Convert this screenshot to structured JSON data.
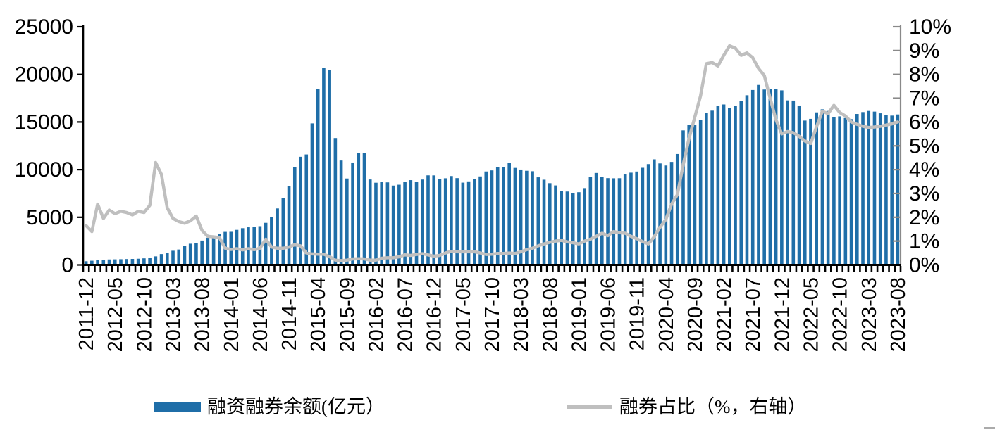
{
  "colors": {
    "bar": "#1F6EA8",
    "line": "#BFBFBF",
    "axis_left": "#000000",
    "axis_right": "#898989",
    "text": "#000000",
    "corner_mark": "#ABABAB"
  },
  "legend": {
    "bar_label": "融资融券余额(亿元）",
    "line_label": "融券占比（%，右轴）"
  },
  "chart_data": {
    "type": "bar",
    "title": "",
    "xlabel": "",
    "ylabel_left": "",
    "ylabel_right": "",
    "legend_position": "bottom",
    "grid": false,
    "left_axis": {
      "min": 0,
      "max": 25000,
      "tick_interval": 5000,
      "tick_labels": [
        "0",
        "5000",
        "10000",
        "15000",
        "20000",
        "25000"
      ]
    },
    "right_axis": {
      "min": 0,
      "max": 10,
      "tick_interval": 1,
      "tick_labels": [
        "0%",
        "1%",
        "2%",
        "3%",
        "4%",
        "5%",
        "6%",
        "7%",
        "8%",
        "9%",
        "10%"
      ]
    },
    "x_tick_labels": [
      "2011-12",
      "2012-05",
      "2012-10",
      "2013-03",
      "2013-08",
      "2014-01",
      "2014-06",
      "2014-11",
      "2015-04",
      "2015-09",
      "2016-02",
      "2016-07",
      "2016-12",
      "2017-05",
      "2017-10",
      "2018-03",
      "2018-08",
      "2019-01",
      "2019-06",
      "2019-11",
      "2020-04",
      "2020-09",
      "2021-02",
      "2021-07",
      "2021-12",
      "2022-05",
      "2022-10",
      "2023-03",
      "2023-08"
    ],
    "x_label_every": 5,
    "categories": [
      "2011-12",
      "2012-01",
      "2012-02",
      "2012-03",
      "2012-04",
      "2012-05",
      "2012-06",
      "2012-07",
      "2012-08",
      "2012-09",
      "2012-10",
      "2012-11",
      "2012-12",
      "2013-01",
      "2013-02",
      "2013-03",
      "2013-04",
      "2013-05",
      "2013-06",
      "2013-07",
      "2013-08",
      "2013-09",
      "2013-10",
      "2013-11",
      "2013-12",
      "2014-01",
      "2014-02",
      "2014-03",
      "2014-04",
      "2014-05",
      "2014-06",
      "2014-07",
      "2014-08",
      "2014-09",
      "2014-10",
      "2014-11",
      "2014-12",
      "2015-01",
      "2015-02",
      "2015-03",
      "2015-04",
      "2015-05",
      "2015-06",
      "2015-07",
      "2015-08",
      "2015-09",
      "2015-10",
      "2015-11",
      "2015-12",
      "2016-01",
      "2016-02",
      "2016-03",
      "2016-04",
      "2016-05",
      "2016-06",
      "2016-07",
      "2016-08",
      "2016-09",
      "2016-10",
      "2016-11",
      "2016-12",
      "2017-01",
      "2017-02",
      "2017-03",
      "2017-04",
      "2017-05",
      "2017-06",
      "2017-07",
      "2017-08",
      "2017-09",
      "2017-10",
      "2017-11",
      "2017-12",
      "2018-01",
      "2018-02",
      "2018-03",
      "2018-04",
      "2018-05",
      "2018-06",
      "2018-07",
      "2018-08",
      "2018-09",
      "2018-10",
      "2018-11",
      "2018-12",
      "2019-01",
      "2019-02",
      "2019-03",
      "2019-04",
      "2019-05",
      "2019-06",
      "2019-07",
      "2019-08",
      "2019-09",
      "2019-10",
      "2019-11",
      "2019-12",
      "2020-01",
      "2020-02",
      "2020-03",
      "2020-04",
      "2020-05",
      "2020-06",
      "2020-07",
      "2020-08",
      "2020-09",
      "2020-10",
      "2020-11",
      "2020-12",
      "2021-01",
      "2021-02",
      "2021-03",
      "2021-04",
      "2021-05",
      "2021-06",
      "2021-07",
      "2021-08",
      "2021-09",
      "2021-10",
      "2021-11",
      "2021-12",
      "2022-01",
      "2022-02",
      "2022-03",
      "2022-04",
      "2022-05",
      "2022-06",
      "2022-07",
      "2022-08",
      "2022-09",
      "2022-10",
      "2022-11",
      "2022-12",
      "2023-01",
      "2023-02",
      "2023-03",
      "2023-04",
      "2023-05",
      "2023-06",
      "2023-07",
      "2023-08"
    ],
    "series": [
      {
        "name": "融资融券余额(亿元）",
        "type": "bar",
        "axis": "left",
        "color": "#1F6EA8",
        "values": [
          382,
          439,
          494,
          530,
          572,
          583,
          597,
          613,
          626,
          647,
          687,
          723,
          895,
          1135,
          1274,
          1485,
          1615,
          2015,
          2221,
          2282,
          2556,
          2844,
          2994,
          3268,
          3465,
          3474,
          3677,
          3854,
          3948,
          4012,
          4064,
          4415,
          4994,
          5924,
          6999,
          8245,
          10256,
          11347,
          11590,
          14852,
          18498,
          20694,
          20444,
          13315,
          10957,
          9067,
          10748,
          11742,
          11743,
          8964,
          8626,
          8722,
          8662,
          8326,
          8416,
          8744,
          8896,
          8726,
          8957,
          9398,
          9393,
          8985,
          9090,
          9325,
          9108,
          8636,
          8766,
          9020,
          9285,
          9805,
          9920,
          10236,
          10263,
          10720,
          10180,
          10010,
          9880,
          9830,
          9190,
          8940,
          8580,
          8340,
          7750,
          7700,
          7557,
          7630,
          8060,
          9222,
          9650,
          9230,
          9108,
          9090,
          9100,
          9489,
          9680,
          9800,
          10193,
          10580,
          11080,
          10651,
          10432,
          10810,
          11637,
          14120,
          14690,
          14720,
          15184,
          15954,
          16190,
          16720,
          16840,
          16507,
          16660,
          17230,
          17809,
          18360,
          18890,
          18408,
          18482,
          18434,
          18322,
          17270,
          17250,
          16730,
          15150,
          15330,
          16010,
          16330,
          16160,
          15540,
          15590,
          15420,
          15300,
          15840,
          16040,
          16160,
          16090,
          15910,
          15740,
          15670,
          15790
        ]
      },
      {
        "name": "融券占比（%，右轴）",
        "type": "line",
        "axis": "right",
        "color": "#BFBFBF",
        "values": [
          1.65,
          1.4,
          2.55,
          1.95,
          2.3,
          2.15,
          2.25,
          2.2,
          2.1,
          2.25,
          2.2,
          2.5,
          4.3,
          3.8,
          2.4,
          1.95,
          1.82,
          1.75,
          1.85,
          2.05,
          1.45,
          1.2,
          1.18,
          1.15,
          0.7,
          0.65,
          0.68,
          0.63,
          0.68,
          0.64,
          0.7,
          1.08,
          0.75,
          0.7,
          0.7,
          0.75,
          0.85,
          0.8,
          0.5,
          0.46,
          0.45,
          0.45,
          0.35,
          0.2,
          0.18,
          0.2,
          0.25,
          0.26,
          0.25,
          0.2,
          0.2,
          0.28,
          0.3,
          0.3,
          0.34,
          0.42,
          0.4,
          0.44,
          0.47,
          0.42,
          0.37,
          0.4,
          0.5,
          0.57,
          0.55,
          0.55,
          0.55,
          0.55,
          0.5,
          0.44,
          0.45,
          0.48,
          0.48,
          0.5,
          0.48,
          0.55,
          0.64,
          0.7,
          0.8,
          0.88,
          0.95,
          1.0,
          1.03,
          0.97,
          0.93,
          0.88,
          1.0,
          1.08,
          1.2,
          1.33,
          1.23,
          1.4,
          1.35,
          1.33,
          1.2,
          1.1,
          0.98,
          0.88,
          1.18,
          1.58,
          1.9,
          2.55,
          2.95,
          4.2,
          5.3,
          6.2,
          7.1,
          8.45,
          8.5,
          8.35,
          8.8,
          9.2,
          9.1,
          8.8,
          8.9,
          8.7,
          8.25,
          7.95,
          7.0,
          6.1,
          5.5,
          5.6,
          5.55,
          5.4,
          5.2,
          5.1,
          5.8,
          6.45,
          6.35,
          6.7,
          6.4,
          6.25,
          6.0,
          5.9,
          5.82,
          5.77,
          5.79,
          5.82,
          5.87,
          5.92,
          6.0
        ]
      }
    ]
  }
}
